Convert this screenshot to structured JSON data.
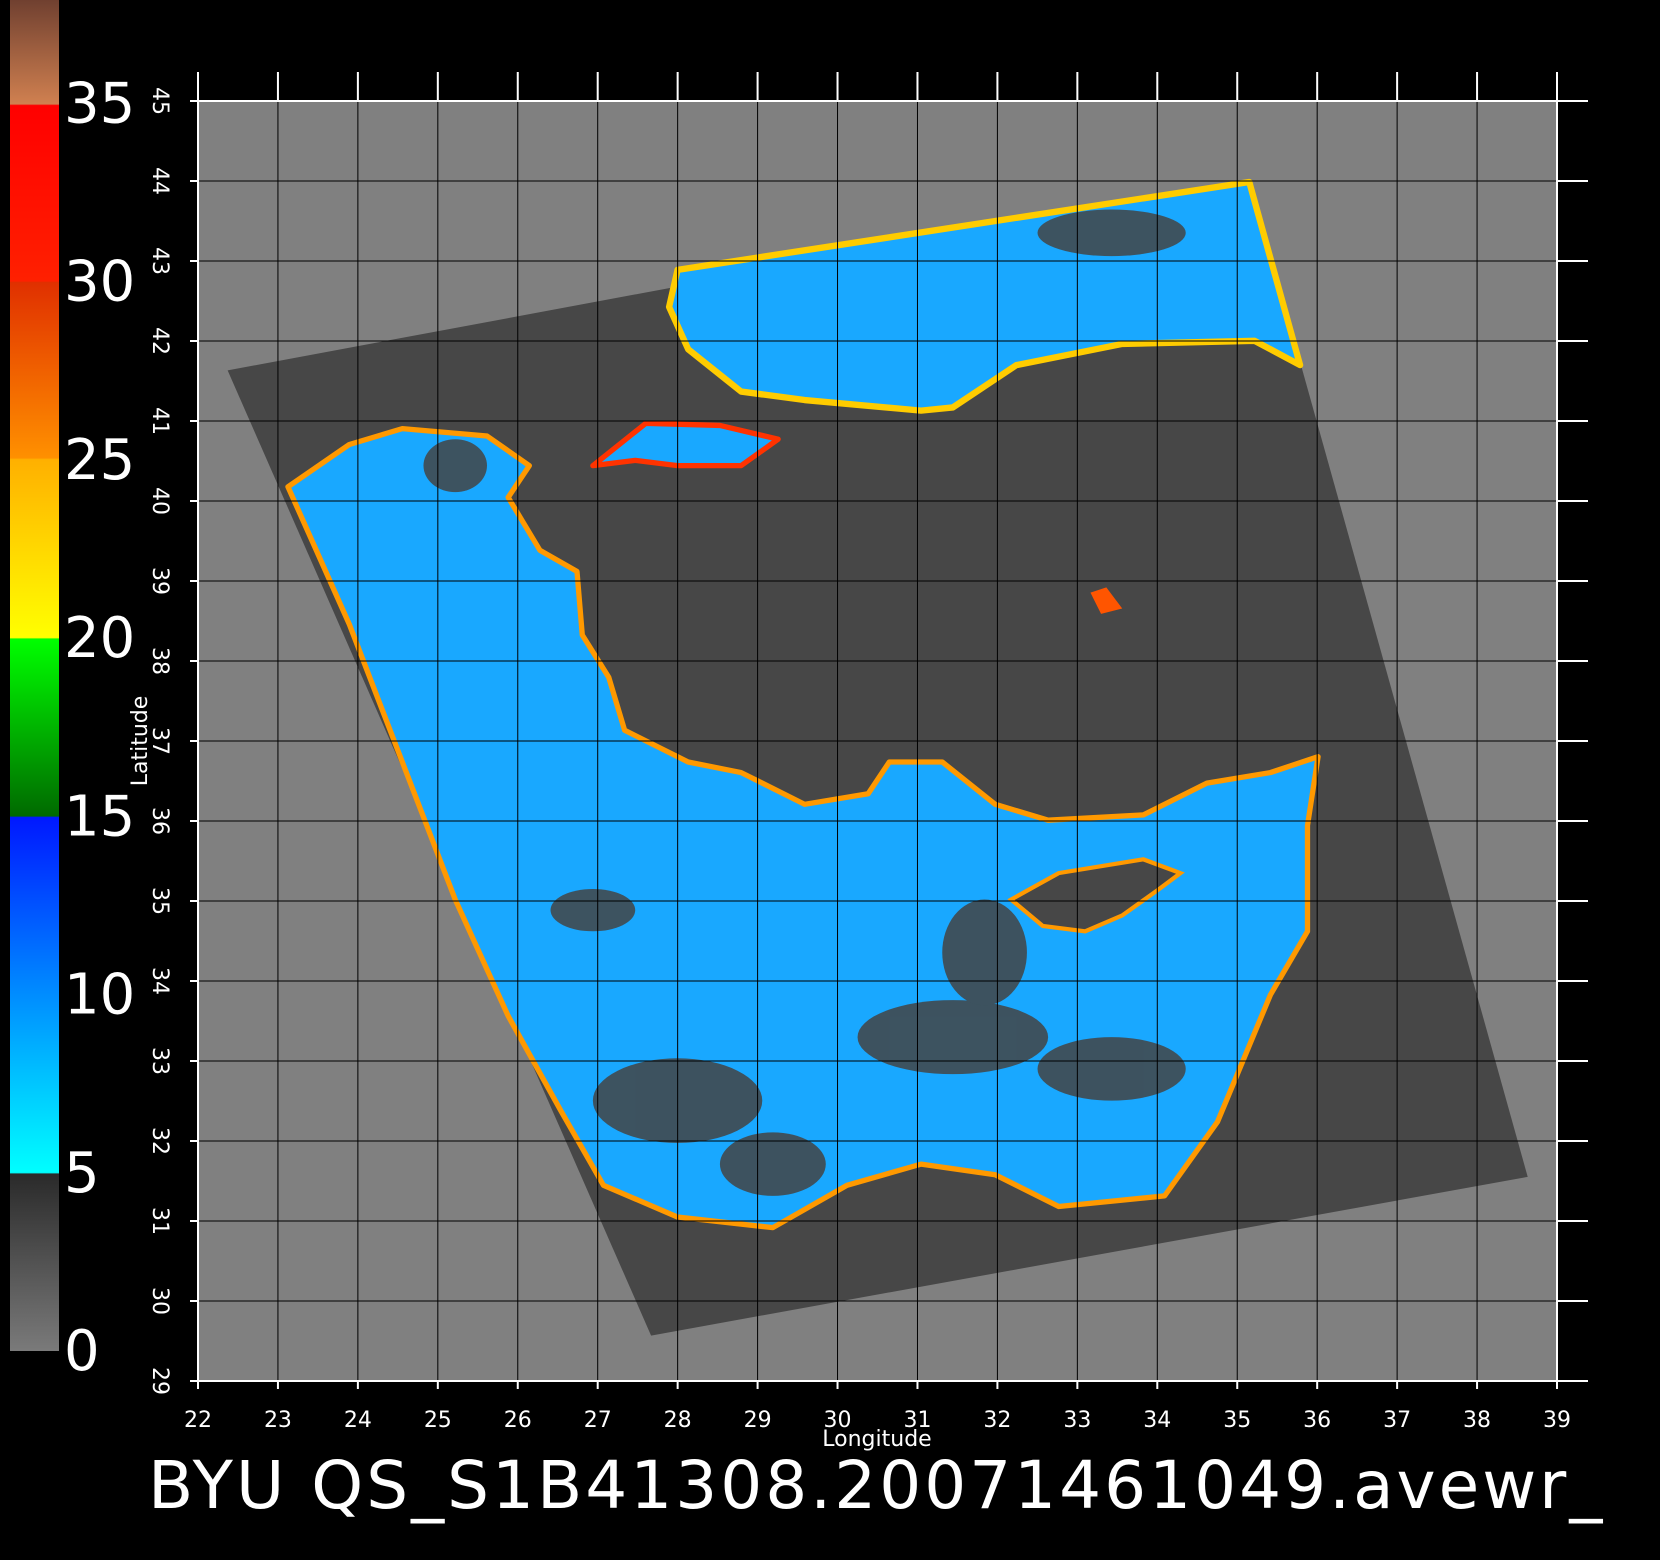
{
  "chart_data": {
    "type": "map",
    "title": "BYU QS_S1B41308.20071461049.avewr_",
    "xlabel": "Longitude",
    "ylabel": "Latitude",
    "xlim": [
      22,
      39
    ],
    "ylim": [
      29,
      45
    ],
    "xticks": [
      22,
      23,
      24,
      25,
      26,
      27,
      28,
      29,
      30,
      31,
      32,
      33,
      34,
      35,
      36,
      37,
      38,
      39
    ],
    "yticks": [
      29,
      30,
      31,
      32,
      33,
      34,
      35,
      36,
      37,
      38,
      39,
      40,
      41,
      42,
      43,
      44,
      45
    ],
    "grid": true,
    "colorbar": {
      "lim": [
        0,
        37.9
      ],
      "ticks": [
        0,
        5,
        10,
        15,
        20,
        25,
        30,
        35
      ]
    }
  }
}
